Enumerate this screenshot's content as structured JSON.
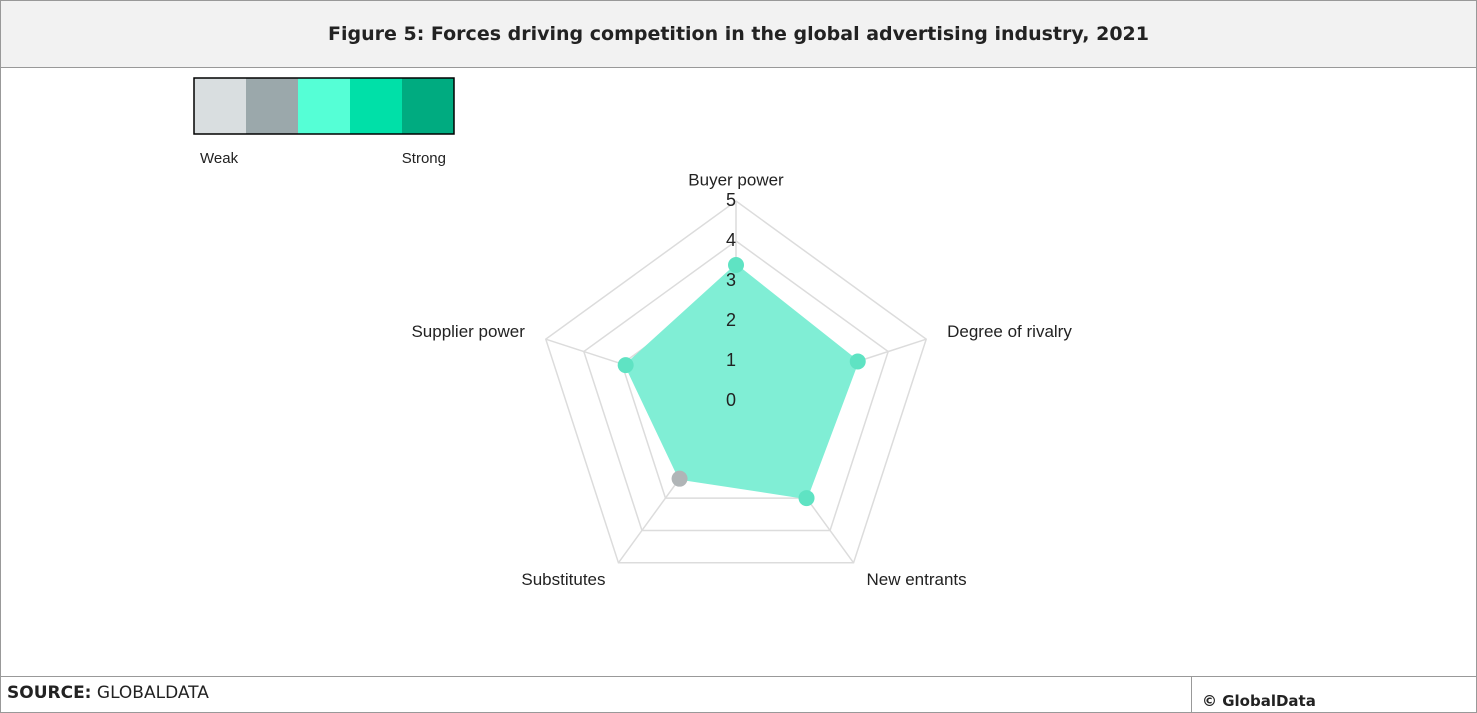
{
  "header": {
    "title": "Figure 5: Forces driving competition in the global advertising industry, 2021"
  },
  "chart_data": {
    "type": "radar",
    "categories": [
      "Buyer power",
      "Degree of rivalry",
      "New entrants",
      "Substitutes",
      "Supplier power"
    ],
    "series": [
      {
        "values": [
          3.4,
          3.2,
          3.0,
          2.4,
          2.9
        ],
        "color": "#80eed5",
        "point_colors": [
          "#5fe3c3",
          "#5fe3c3",
          "#5fe3c3",
          "#b0b5b7",
          "#5fe3c3"
        ]
      }
    ],
    "rlim": [
      0,
      5
    ],
    "rticks": [
      0,
      1,
      2,
      3,
      4,
      5
    ],
    "grid": true,
    "legend": {
      "colors": [
        "#d9dee0",
        "#9ba8ab",
        "#55ffd6",
        "#00e0a8",
        "#00ab80"
      ],
      "labels": [
        "Weak",
        "Strong"
      ]
    }
  },
  "footer": {
    "source_label": "SOURCE:",
    "source": "GLOBALDATA",
    "copyright": "© GlobalData"
  }
}
